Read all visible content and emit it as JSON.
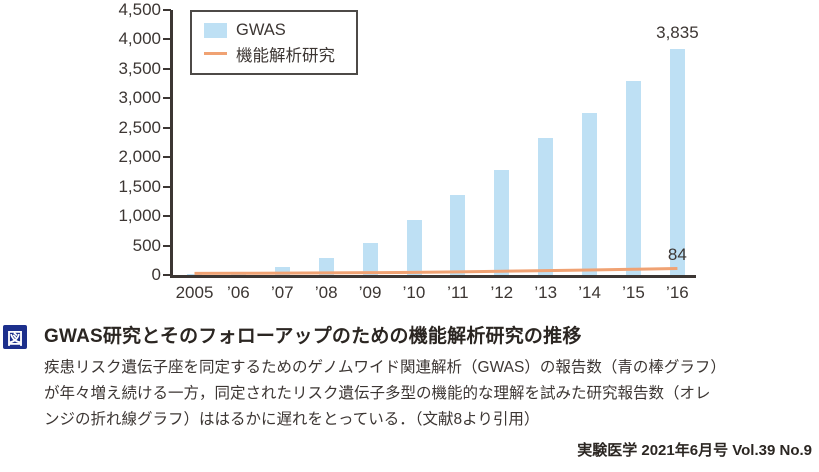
{
  "colors": {
    "bar_blue": "#BEE0F4",
    "line_orange": "#F0A273",
    "axis": "#3c3633",
    "badge_navy": "#1C2F8C"
  },
  "chart_data": {
    "type": "bar",
    "title": "",
    "xlabel": "",
    "ylabel": "",
    "ylim": [
      0,
      4500
    ],
    "ytick_interval": 500,
    "ytick_labels": [
      "0",
      "500",
      "1,000",
      "1,500",
      "2,000",
      "2,500",
      "3,000",
      "3,500",
      "4,000",
      "4,500"
    ],
    "grid": false,
    "legend_position": "top-left",
    "categories": [
      "2005",
      "’06",
      "’07",
      "’08",
      "’09",
      "’10",
      "’11",
      "’12",
      "’13",
      "’14",
      "’15",
      "’16"
    ],
    "series": [
      {
        "name": "GWAS",
        "type": "bar",
        "color": "#BEE0F4",
        "values": [
          15,
          30,
          130,
          290,
          540,
          930,
          1360,
          1790,
          2330,
          2750,
          3300,
          3835
        ]
      },
      {
        "name": "機能解析研究",
        "type": "line",
        "color": "#F0A273",
        "values": [
          2,
          4,
          6,
          10,
          14,
          20,
          28,
          38,
          48,
          60,
          72,
          84
        ]
      }
    ],
    "annotations": {
      "last_bar_value_label": "3,835",
      "last_line_value_label": "84"
    }
  },
  "caption": {
    "badge": "図",
    "title": "GWAS研究とそのフォローアップのための機能解析研究の推移",
    "description_lines": [
      "疾患リスク遺伝子座を同定するためのゲノムワイド関連解析（GWAS）の報告数（青の棒グラフ）",
      "が年々増え続ける一方，同定されたリスク遺伝子多型の機能的な理解を試みた研究報告数（オレ",
      "ンジの折れ線グラフ）ははるかに遅れをとっている．（文献8より引用）"
    ],
    "source": "実験医学 2021年6月号 Vol.39 No.9"
  }
}
